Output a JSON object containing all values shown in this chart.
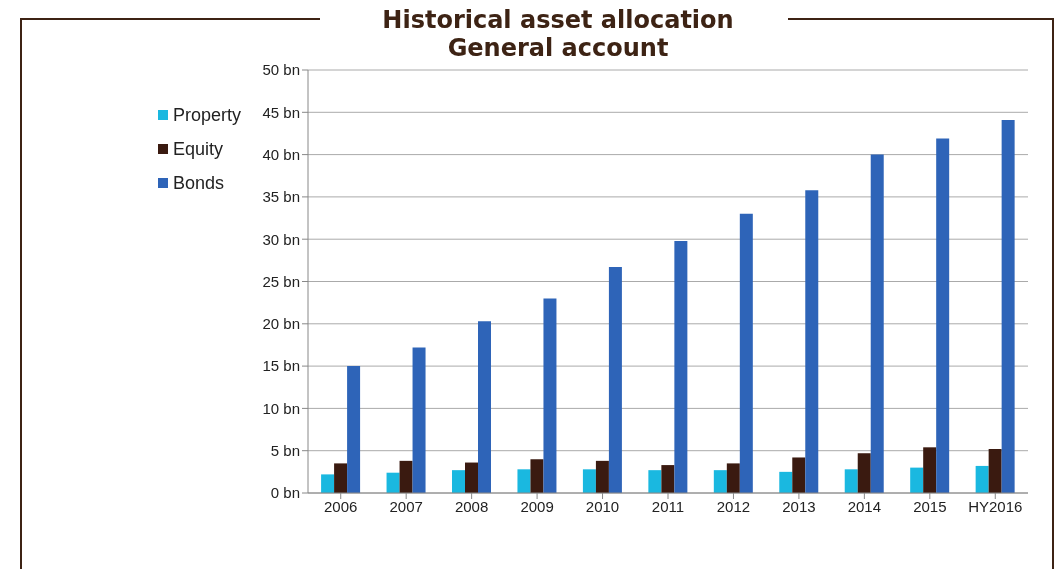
{
  "chart_data": {
    "type": "bar",
    "title": "Historical asset allocation",
    "subtitle": "General account",
    "categories": [
      "2006",
      "2007",
      "2008",
      "2009",
      "2010",
      "2011",
      "2012",
      "2013",
      "2014",
      "2015",
      "HY2016"
    ],
    "series": [
      {
        "name": "Property",
        "color": "#1ab8e0",
        "values": [
          2.2,
          2.4,
          2.7,
          2.8,
          2.8,
          2.7,
          2.7,
          2.5,
          2.8,
          3.0,
          3.2
        ]
      },
      {
        "name": "Equity",
        "color": "#3a1a10",
        "values": [
          3.5,
          3.8,
          3.6,
          4.0,
          3.8,
          3.3,
          3.5,
          4.2,
          4.7,
          5.4,
          5.2
        ]
      },
      {
        "name": "Bonds",
        "color": "#2e64b8",
        "values": [
          15,
          17.2,
          20.3,
          23,
          26.7,
          29.8,
          33,
          35.8,
          40,
          41.9,
          44.1
        ]
      }
    ],
    "ylim": [
      0,
      50
    ],
    "yticks": [
      {
        "value": 0,
        "label": "0 bn"
      },
      {
        "value": 5,
        "label": "5 bn"
      },
      {
        "value": 10,
        "label": "10 bn"
      },
      {
        "value": 15,
        "label": "15 bn"
      },
      {
        "value": 20,
        "label": "20 bn"
      },
      {
        "value": 25,
        "label": "25 bn"
      },
      {
        "value": 30,
        "label": "30 bn"
      },
      {
        "value": 35,
        "label": "35 bn"
      },
      {
        "value": 40,
        "label": "40 bn"
      },
      {
        "value": 45,
        "label": "45 bn"
      },
      {
        "value": 50,
        "label": "50 bn"
      }
    ],
    "grid": "y",
    "legend": "top left"
  }
}
